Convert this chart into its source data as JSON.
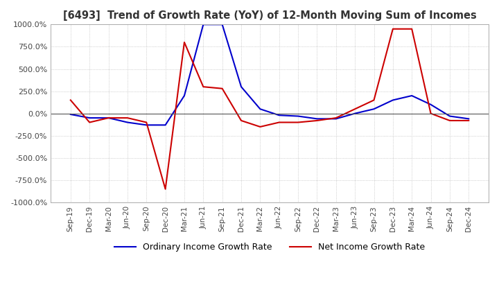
{
  "title": "[6493]  Trend of Growth Rate (YoY) of 12-Month Moving Sum of Incomes",
  "ylim": [
    -1000,
    1000
  ],
  "yticks": [
    -1000,
    -750,
    -500,
    -250,
    0,
    250,
    500,
    750,
    1000
  ],
  "ytick_labels": [
    "-1000.0%",
    "-750.0%",
    "-500.0%",
    "-250.0%",
    "0.0%",
    "250.0%",
    "500.0%",
    "750.0%",
    "1000.0%"
  ],
  "background_color": "#ffffff",
  "grid_color": "#b0b0b0",
  "ordinary_color": "#0000cc",
  "net_color": "#cc0000",
  "legend_ordinary": "Ordinary Income Growth Rate",
  "legend_net": "Net Income Growth Rate",
  "x_labels": [
    "Sep-19",
    "Dec-19",
    "Mar-20",
    "Jun-20",
    "Sep-20",
    "Dec-20",
    "Mar-21",
    "Jun-21",
    "Sep-21",
    "Dec-21",
    "Mar-22",
    "Jun-22",
    "Sep-22",
    "Dec-22",
    "Mar-23",
    "Jun-23",
    "Sep-23",
    "Dec-23",
    "Mar-24",
    "Jun-24",
    "Sep-24",
    "Dec-24"
  ],
  "ordinary_values": [
    -10,
    -50,
    -50,
    -100,
    -130,
    -130,
    200,
    1000,
    1000,
    300,
    50,
    -20,
    -30,
    -60,
    -60,
    0,
    50,
    150,
    200,
    100,
    -30,
    -60
  ],
  "net_values": [
    150,
    -100,
    -50,
    -50,
    -100,
    -850,
    800,
    300,
    280,
    -80,
    -150,
    -100,
    -100,
    -80,
    -50,
    50,
    150,
    950,
    950,
    0,
    -80,
    -80
  ]
}
